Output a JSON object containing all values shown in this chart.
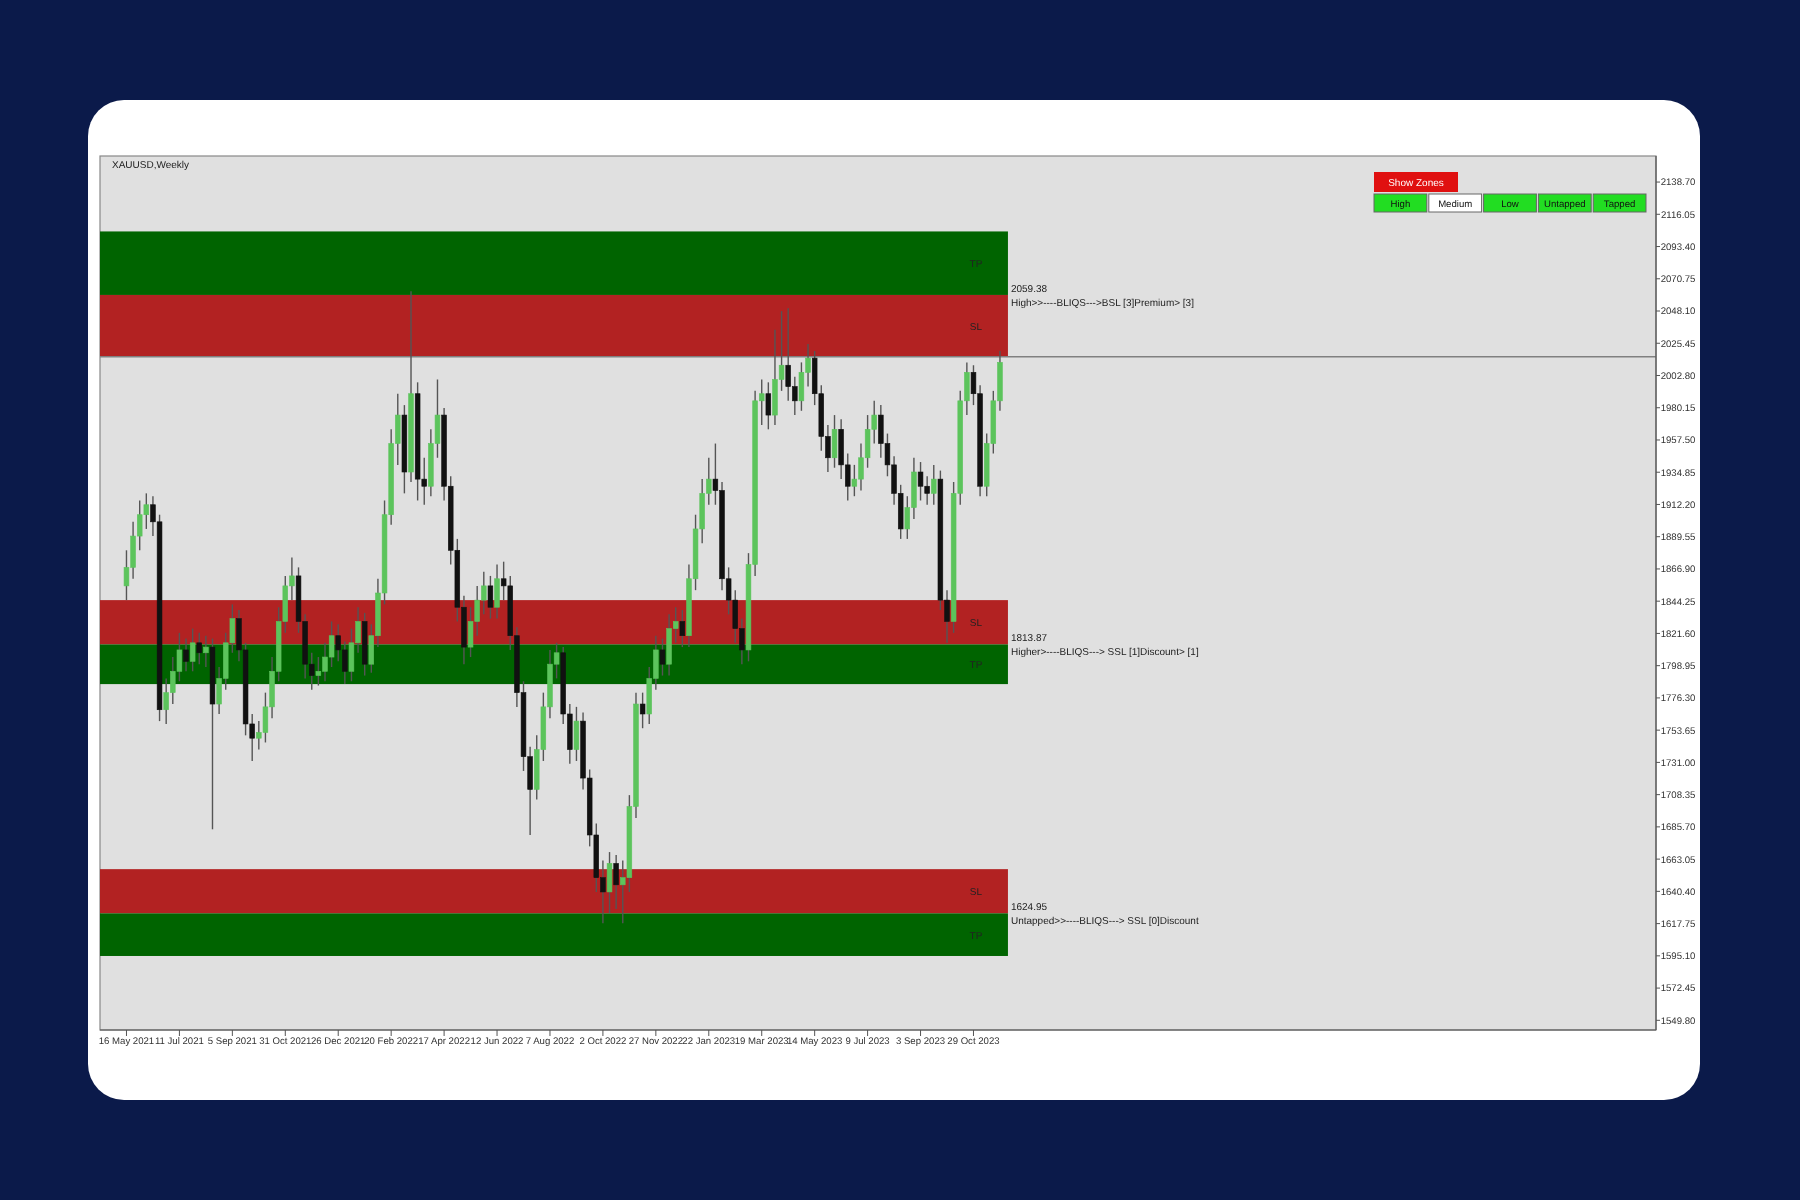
{
  "chart_data": {
    "type": "candlestick",
    "title": "XAUUSD,Weekly",
    "x": [
      "2021-05-16",
      "2021-05-23",
      "2021-05-30",
      "2021-06-06",
      "2021-06-13",
      "2021-06-20",
      "2021-06-27",
      "2021-07-04",
      "2021-07-11",
      "2021-07-18",
      "2021-07-25",
      "2021-08-01",
      "2021-08-08",
      "2021-08-15",
      "2021-08-22",
      "2021-08-29",
      "2021-09-05",
      "2021-09-12",
      "2021-09-19",
      "2021-09-26",
      "2021-10-03",
      "2021-10-10",
      "2021-10-17",
      "2021-10-24",
      "2021-10-31",
      "2021-11-07",
      "2021-11-14",
      "2021-11-21",
      "2021-11-28",
      "2021-12-05",
      "2021-12-12",
      "2021-12-19",
      "2021-12-26",
      "2022-01-02",
      "2022-01-09",
      "2022-01-16",
      "2022-01-23",
      "2022-01-30",
      "2022-02-06",
      "2022-02-13",
      "2022-02-20",
      "2022-02-27",
      "2022-03-06",
      "2022-03-13",
      "2022-03-20",
      "2022-03-27",
      "2022-04-03",
      "2022-04-10",
      "2022-04-17",
      "2022-04-24",
      "2022-05-01",
      "2022-05-08",
      "2022-05-15",
      "2022-05-22",
      "2022-05-29",
      "2022-06-05",
      "2022-06-12",
      "2022-06-19",
      "2022-06-26",
      "2022-07-03",
      "2022-07-10",
      "2022-07-17",
      "2022-07-24",
      "2022-07-31",
      "2022-08-07",
      "2022-08-14",
      "2022-08-21",
      "2022-08-28",
      "2022-09-04",
      "2022-09-11",
      "2022-09-18",
      "2022-09-25",
      "2022-10-02",
      "2022-10-09",
      "2022-10-16",
      "2022-10-23",
      "2022-10-30",
      "2022-11-06",
      "2022-11-13",
      "2022-11-20",
      "2022-11-27",
      "2022-12-04",
      "2022-12-11",
      "2022-12-18",
      "2022-12-25",
      "2023-01-01",
      "2023-01-08",
      "2023-01-15",
      "2023-01-22",
      "2023-01-29",
      "2023-02-05",
      "2023-02-12",
      "2023-02-19",
      "2023-02-26",
      "2023-03-05",
      "2023-03-12",
      "2023-03-19",
      "2023-03-26",
      "2023-04-02",
      "2023-04-09",
      "2023-04-16",
      "2023-04-23",
      "2023-04-30",
      "2023-05-07",
      "2023-05-14",
      "2023-05-21",
      "2023-05-28",
      "2023-06-04",
      "2023-06-11",
      "2023-06-18",
      "2023-06-25",
      "2023-07-02",
      "2023-07-09",
      "2023-07-16",
      "2023-07-23",
      "2023-07-30",
      "2023-08-06",
      "2023-08-13",
      "2023-08-20",
      "2023-08-27",
      "2023-09-03",
      "2023-09-10",
      "2023-09-17",
      "2023-09-24",
      "2023-10-01",
      "2023-10-08",
      "2023-10-15",
      "2023-10-22",
      "2023-10-29",
      "2023-11-05",
      "2023-11-12",
      "2023-11-19",
      "2023-11-26"
    ],
    "ohlc": [
      [
        1855,
        1880,
        1845,
        1868
      ],
      [
        1868,
        1900,
        1860,
        1890
      ],
      [
        1890,
        1915,
        1880,
        1905
      ],
      [
        1905,
        1920,
        1895,
        1912
      ],
      [
        1912,
        1918,
        1890,
        1900
      ],
      [
        1900,
        1905,
        1760,
        1768
      ],
      [
        1768,
        1790,
        1758,
        1780
      ],
      [
        1780,
        1805,
        1772,
        1795
      ],
      [
        1795,
        1822,
        1788,
        1810
      ],
      [
        1810,
        1818,
        1795,
        1802
      ],
      [
        1802,
        1825,
        1795,
        1815
      ],
      [
        1815,
        1822,
        1800,
        1808
      ],
      [
        1808,
        1820,
        1798,
        1812
      ],
      [
        1812,
        1818,
        1684,
        1772
      ],
      [
        1772,
        1798,
        1765,
        1790
      ],
      [
        1790,
        1822,
        1782,
        1815
      ],
      [
        1815,
        1842,
        1808,
        1832
      ],
      [
        1832,
        1838,
        1802,
        1810
      ],
      [
        1810,
        1815,
        1750,
        1758
      ],
      [
        1758,
        1765,
        1732,
        1748
      ],
      [
        1748,
        1760,
        1740,
        1752
      ],
      [
        1752,
        1780,
        1745,
        1770
      ],
      [
        1770,
        1805,
        1762,
        1795
      ],
      [
        1795,
        1840,
        1788,
        1830
      ],
      [
        1830,
        1862,
        1822,
        1855
      ],
      [
        1855,
        1875,
        1845,
        1862
      ],
      [
        1862,
        1868,
        1822,
        1830
      ],
      [
        1830,
        1835,
        1790,
        1800
      ],
      [
        1800,
        1808,
        1782,
        1792
      ],
      [
        1792,
        1805,
        1785,
        1795
      ],
      [
        1795,
        1815,
        1788,
        1805
      ],
      [
        1805,
        1830,
        1798,
        1820
      ],
      [
        1820,
        1828,
        1802,
        1810
      ],
      [
        1810,
        1816,
        1786,
        1795
      ],
      [
        1795,
        1825,
        1788,
        1815
      ],
      [
        1815,
        1840,
        1808,
        1830
      ],
      [
        1830,
        1836,
        1792,
        1800
      ],
      [
        1800,
        1828,
        1794,
        1820
      ],
      [
        1820,
        1860,
        1812,
        1850
      ],
      [
        1850,
        1915,
        1842,
        1905
      ],
      [
        1905,
        1965,
        1898,
        1955
      ],
      [
        1955,
        1990,
        1940,
        1975
      ],
      [
        1975,
        1982,
        1920,
        1935
      ],
      [
        1935,
        2062,
        1928,
        1990
      ],
      [
        1990,
        1998,
        1915,
        1930
      ],
      [
        1930,
        1945,
        1912,
        1925
      ],
      [
        1925,
        1965,
        1918,
        1955
      ],
      [
        1955,
        2000,
        1945,
        1975
      ],
      [
        1975,
        1980,
        1915,
        1925
      ],
      [
        1925,
        1932,
        1870,
        1880
      ],
      [
        1880,
        1888,
        1830,
        1840
      ],
      [
        1840,
        1848,
        1800,
        1812
      ],
      [
        1812,
        1840,
        1805,
        1830
      ],
      [
        1830,
        1855,
        1820,
        1845
      ],
      [
        1845,
        1865,
        1835,
        1855
      ],
      [
        1855,
        1862,
        1832,
        1840
      ],
      [
        1840,
        1870,
        1832,
        1860
      ],
      [
        1860,
        1872,
        1845,
        1855
      ],
      [
        1855,
        1862,
        1810,
        1820
      ],
      [
        1820,
        1826,
        1770,
        1780
      ],
      [
        1780,
        1788,
        1725,
        1735
      ],
      [
        1735,
        1742,
        1680,
        1712
      ],
      [
        1712,
        1750,
        1705,
        1740
      ],
      [
        1740,
        1780,
        1732,
        1770
      ],
      [
        1770,
        1810,
        1762,
        1800
      ],
      [
        1800,
        1815,
        1790,
        1808
      ],
      [
        1808,
        1812,
        1758,
        1765
      ],
      [
        1765,
        1772,
        1730,
        1740
      ],
      [
        1740,
        1770,
        1732,
        1760
      ],
      [
        1760,
        1766,
        1712,
        1720
      ],
      [
        1720,
        1726,
        1672,
        1680
      ],
      [
        1680,
        1688,
        1640,
        1650
      ],
      [
        1650,
        1662,
        1618,
        1640
      ],
      [
        1640,
        1668,
        1625,
        1660
      ],
      [
        1660,
        1666,
        1628,
        1645
      ],
      [
        1645,
        1662,
        1618,
        1650
      ],
      [
        1650,
        1708,
        1640,
        1700
      ],
      [
        1700,
        1780,
        1692,
        1772
      ],
      [
        1772,
        1780,
        1755,
        1765
      ],
      [
        1765,
        1798,
        1758,
        1790
      ],
      [
        1790,
        1820,
        1782,
        1810
      ],
      [
        1810,
        1818,
        1792,
        1800
      ],
      [
        1800,
        1835,
        1792,
        1825
      ],
      [
        1825,
        1840,
        1815,
        1830
      ],
      [
        1830,
        1838,
        1812,
        1820
      ],
      [
        1820,
        1870,
        1812,
        1860
      ],
      [
        1860,
        1905,
        1852,
        1895
      ],
      [
        1895,
        1930,
        1885,
        1920
      ],
      [
        1920,
        1945,
        1912,
        1930
      ],
      [
        1930,
        1955,
        1912,
        1922
      ],
      [
        1922,
        1928,
        1852,
        1860
      ],
      [
        1860,
        1868,
        1835,
        1845
      ],
      [
        1845,
        1852,
        1815,
        1825
      ],
      [
        1825,
        1832,
        1800,
        1810
      ],
      [
        1810,
        1878,
        1802,
        1870
      ],
      [
        1870,
        1992,
        1862,
        1985
      ],
      [
        1985,
        2000,
        1968,
        1990
      ],
      [
        1990,
        1998,
        1965,
        1975
      ],
      [
        1975,
        2035,
        1968,
        2000
      ],
      [
        2000,
        2048,
        1992,
        2010
      ],
      [
        2010,
        2050,
        1985,
        1995
      ],
      [
        1995,
        2002,
        1975,
        1985
      ],
      [
        1985,
        2012,
        1978,
        2005
      ],
      [
        2005,
        2025,
        1995,
        2015
      ],
      [
        2015,
        2020,
        1982,
        1990
      ],
      [
        1990,
        1996,
        1950,
        1960
      ],
      [
        1960,
        1968,
        1935,
        1945
      ],
      [
        1945,
        1975,
        1938,
        1965
      ],
      [
        1965,
        1972,
        1930,
        1940
      ],
      [
        1940,
        1948,
        1915,
        1925
      ],
      [
        1925,
        1940,
        1918,
        1930
      ],
      [
        1930,
        1955,
        1922,
        1945
      ],
      [
        1945,
        1975,
        1938,
        1965
      ],
      [
        1965,
        1985,
        1955,
        1975
      ],
      [
        1975,
        1982,
        1945,
        1955
      ],
      [
        1955,
        1962,
        1932,
        1940
      ],
      [
        1940,
        1946,
        1912,
        1920
      ],
      [
        1920,
        1926,
        1888,
        1895
      ],
      [
        1895,
        1918,
        1888,
        1910
      ],
      [
        1910,
        1945,
        1902,
        1935
      ],
      [
        1935,
        1942,
        1915,
        1925
      ],
      [
        1925,
        1932,
        1912,
        1920
      ],
      [
        1920,
        1940,
        1912,
        1930
      ],
      [
        1930,
        1936,
        1838,
        1845
      ],
      [
        1845,
        1852,
        1815,
        1830
      ],
      [
        1830,
        1928,
        1822,
        1920
      ],
      [
        1920,
        1992,
        1912,
        1985
      ],
      [
        1985,
        2012,
        1975,
        2005
      ],
      [
        2005,
        2010,
        1982,
        1990
      ],
      [
        1990,
        1996,
        1918,
        1925
      ],
      [
        1925,
        1962,
        1918,
        1955
      ],
      [
        1955,
        1992,
        1948,
        1985
      ],
      [
        1985,
        2020,
        1978,
        2012
      ]
    ],
    "colors": [
      "#5cc45c",
      "#5cc45c",
      "#5cc45c",
      "#5cc45c",
      "#111111",
      "#111111",
      "#5cc45c",
      "#5cc45c",
      "#5cc45c",
      "#111111",
      "#5cc45c",
      "#111111",
      "#5cc45c",
      "#111111",
      "#5cc45c",
      "#5cc45c",
      "#5cc45c",
      "#111111",
      "#111111",
      "#111111",
      "#5cc45c",
      "#5cc45c",
      "#5cc45c",
      "#5cc45c",
      "#5cc45c",
      "#5cc45c",
      "#111111",
      "#111111",
      "#111111",
      "#5cc45c",
      "#5cc45c",
      "#5cc45c",
      "#111111",
      "#111111",
      "#5cc45c",
      "#5cc45c",
      "#111111",
      "#5cc45c",
      "#5cc45c",
      "#5cc45c",
      "#5cc45c",
      "#5cc45c",
      "#111111",
      "#5cc45c",
      "#111111",
      "#111111",
      "#5cc45c",
      "#5cc45c",
      "#111111",
      "#111111",
      "#111111",
      "#111111",
      "#5cc45c",
      "#5cc45c",
      "#5cc45c",
      "#111111",
      "#5cc45c",
      "#111111",
      "#111111",
      "#111111",
      "#111111",
      "#111111",
      "#5cc45c",
      "#5cc45c",
      "#5cc45c",
      "#5cc45c",
      "#111111",
      "#111111",
      "#5cc45c",
      "#111111",
      "#111111",
      "#111111",
      "#111111",
      "#5cc45c",
      "#111111",
      "#5cc45c",
      "#5cc45c",
      "#5cc45c",
      "#111111",
      "#5cc45c",
      "#5cc45c",
      "#111111",
      "#5cc45c",
      "#5cc45c",
      "#111111",
      "#5cc45c",
      "#5cc45c",
      "#5cc45c",
      "#5cc45c",
      "#111111",
      "#111111",
      "#111111",
      "#111111",
      "#111111",
      "#5cc45c",
      "#5cc45c",
      "#5cc45c",
      "#111111",
      "#5cc45c",
      "#5cc45c",
      "#111111",
      "#111111",
      "#5cc45c",
      "#5cc45c",
      "#111111",
      "#111111",
      "#111111",
      "#5cc45c",
      "#111111",
      "#111111",
      "#5cc45c",
      "#5cc45c",
      "#5cc45c",
      "#5cc45c",
      "#111111",
      "#111111",
      "#111111",
      "#111111",
      "#5cc45c",
      "#5cc45c",
      "#111111",
      "#111111",
      "#5cc45c",
      "#111111",
      "#111111",
      "#5cc45c",
      "#5cc45c",
      "#5cc45c",
      "#111111",
      "#111111",
      "#5cc45c",
      "#5cc45c",
      "#5cc45c"
    ],
    "xlim": [
      "2021-04-18",
      "2025-10-20"
    ],
    "xticks": [
      {
        "value": "2021-05-16",
        "label": "16 May 2021"
      },
      {
        "value": "2021-07-11",
        "label": "11 Jul 2021"
      },
      {
        "value": "2021-09-05",
        "label": "5 Sep 2021"
      },
      {
        "value": "2021-10-31",
        "label": "31 Oct 2021"
      },
      {
        "value": "2021-12-26",
        "label": "26 Dec 2021"
      },
      {
        "value": "2022-02-20",
        "label": "20 Feb 2022"
      },
      {
        "value": "2022-04-17",
        "label": "17 Apr 2022"
      },
      {
        "value": "2022-06-12",
        "label": "12 Jun 2022"
      },
      {
        "value": "2022-08-07",
        "label": "7 Aug 2022"
      },
      {
        "value": "2022-10-02",
        "label": "2 Oct 2022"
      },
      {
        "value": "2022-11-27",
        "label": "27 Nov 2022"
      },
      {
        "value": "2023-01-22",
        "label": "22 Jan 2023"
      },
      {
        "value": "2023-03-19",
        "label": "19 Mar 2023"
      },
      {
        "value": "2023-05-14",
        "label": "14 May 2023"
      },
      {
        "value": "2023-07-09",
        "label": "9 Jul 2023"
      },
      {
        "value": "2023-09-03",
        "label": "3 Sep 2023"
      },
      {
        "value": "2023-10-29",
        "label": "29 Oct 2023"
      }
    ],
    "ylim": [
      1543,
      2157
    ],
    "yticks": [
      {
        "value": 1549.8,
        "label": "1549.80"
      },
      {
        "value": 1572.45,
        "label": "1572.45"
      },
      {
        "value": 1595.1,
        "label": "1595.10"
      },
      {
        "value": 1617.75,
        "label": "1617.75"
      },
      {
        "value": 1640.4,
        "label": "1640.40"
      },
      {
        "value": 1663.05,
        "label": "1663.05"
      },
      {
        "value": 1685.7,
        "label": "1685.70"
      },
      {
        "value": 1708.35,
        "label": "1708.35"
      },
      {
        "value": 1731,
        "label": "1731.00"
      },
      {
        "value": 1753.65,
        "label": "1753.65"
      },
      {
        "value": 1776.3,
        "label": "1776.30"
      },
      {
        "value": 1798.95,
        "label": "1798.95"
      },
      {
        "value": 1821.6,
        "label": "1821.60"
      },
      {
        "value": 1844.25,
        "label": "1844.25"
      },
      {
        "value": 1866.9,
        "label": "1866.90"
      },
      {
        "value": 1889.55,
        "label": "1889.55"
      },
      {
        "value": 1912.2,
        "label": "1912.20"
      },
      {
        "value": 1934.85,
        "label": "1934.85"
      },
      {
        "value": 1957.5,
        "label": "1957.50"
      },
      {
        "value": 1980.15,
        "label": "1980.15"
      },
      {
        "value": 2002.8,
        "label": "2002.80"
      },
      {
        "value": 2025.45,
        "label": "2025.45"
      },
      {
        "value": 2048.1,
        "label": "2048.10"
      },
      {
        "value": 2070.75,
        "label": "2070.75"
      },
      {
        "value": 2093.4,
        "label": "2093.40"
      },
      {
        "value": 2116.05,
        "label": "2116.05"
      },
      {
        "value": 2138.7,
        "label": "2138.70"
      }
    ],
    "bands": [
      {
        "axis": "y",
        "from": 2059.38,
        "to": 2104,
        "label": "TP",
        "color": "#006400"
      },
      {
        "axis": "y",
        "from": 2016,
        "to": 2059.38,
        "label": "SL",
        "color": "#b22222"
      },
      {
        "axis": "y",
        "from": 1813.87,
        "to": 1845,
        "label": "SL",
        "color": "#b22222"
      },
      {
        "axis": "y",
        "from": 1786,
        "to": 1813.87,
        "label": "TP",
        "color": "#006400"
      },
      {
        "axis": "y",
        "from": 1624.95,
        "to": 1656,
        "label": "SL",
        "color": "#b22222"
      },
      {
        "axis": "y",
        "from": 1595,
        "to": 1624.95,
        "label": "TP",
        "color": "#006400"
      }
    ],
    "ref_lines": [
      {
        "axis": "y",
        "value": 2016,
        "color": "#808080"
      }
    ],
    "annotations": [
      {
        "text": "2059.38",
        "x": "2023-12-03",
        "y": 2059.38
      },
      {
        "text": "High>>----BLIQS--->BSL [3]Premium> [3]",
        "x": "2023-12-03",
        "y": 2059.38
      },
      {
        "text": "1813.87",
        "x": "2023-12-03",
        "y": 1813.87
      },
      {
        "text": "Higher>----BLIQS---> SSL [1]Discount> [1]",
        "x": "2023-12-03",
        "y": 1813.87
      },
      {
        "text": "1624.95",
        "x": "2023-12-03",
        "y": 1624.95
      },
      {
        "text": "Untapped>>----BLIQS---> SSL [0]Discount",
        "x": "2023-12-03",
        "y": 1624.95
      },
      "Show Zones",
      "High",
      "Medium",
      "Low",
      "Untapped",
      "Tapped"
    ]
  }
}
